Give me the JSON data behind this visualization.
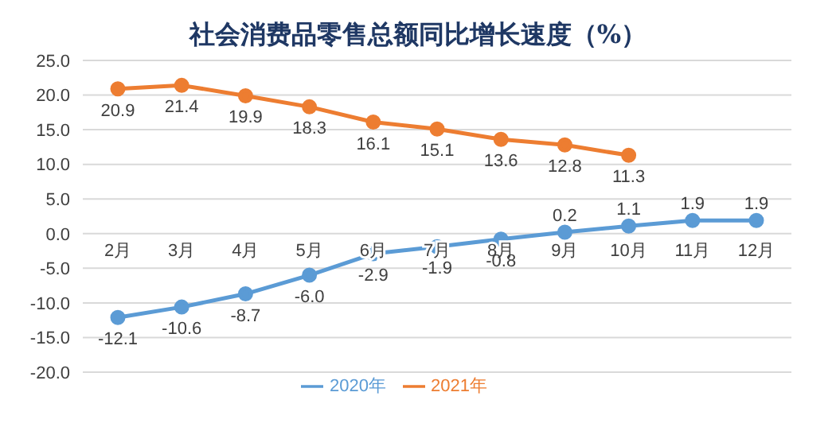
{
  "chart_data": {
    "type": "line",
    "title": "社会消费品零售总额同比增长速度（%）",
    "categories": [
      "2月",
      "3月",
      "4月",
      "5月",
      "6月",
      "7月",
      "8月",
      "9月",
      "10月",
      "11月",
      "12月"
    ],
    "series": [
      {
        "name": "2020年",
        "color": "#5b9bd5",
        "values": [
          -12.1,
          -10.6,
          -8.7,
          -6.0,
          -2.9,
          -1.9,
          -0.8,
          0.2,
          1.1,
          1.9,
          1.9
        ],
        "value_labels": [
          "-12.1",
          "-10.6",
          "-8.7",
          "-6.0",
          "-2.9",
          "-1.9",
          "-0.8",
          "0.2",
          "1.1",
          "1.9",
          "1.9"
        ]
      },
      {
        "name": "2021年",
        "color": "#ed7d31",
        "values": [
          20.9,
          21.4,
          19.9,
          18.3,
          16.1,
          15.1,
          13.6,
          12.8,
          11.3,
          null,
          null
        ],
        "value_labels": [
          "20.9",
          "21.4",
          "19.9",
          "18.3",
          "16.1",
          "15.1",
          "13.6",
          "12.8",
          "11.3",
          null,
          null
        ]
      }
    ],
    "ylim": [
      -20,
      25
    ],
    "yticks": [
      {
        "value": -20,
        "label": "-20.0"
      },
      {
        "value": -15,
        "label": "-15.0"
      },
      {
        "value": -10,
        "label": "-10.0"
      },
      {
        "value": -5,
        "label": "-5.0"
      },
      {
        "value": 0,
        "label": "0.0"
      },
      {
        "value": 5,
        "label": "5.0"
      },
      {
        "value": 10,
        "label": "10.0"
      },
      {
        "value": 15,
        "label": "15.0"
      },
      {
        "value": 20,
        "label": "20.0"
      },
      {
        "value": 25,
        "label": "25.0"
      }
    ],
    "grid": "y",
    "legend": "bottom",
    "marker": "circle",
    "line_style": "solid"
  }
}
